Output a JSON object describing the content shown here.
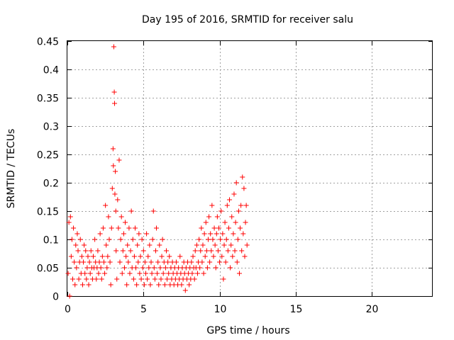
{
  "chart_data": {
    "type": "scatter",
    "title": "Day 195 of 2016, SRMTID for receiver salu",
    "xlabel": "GPS time / hours",
    "ylabel": "SRMTID / TECUs",
    "xlim": [
      0,
      24
    ],
    "ylim": [
      0,
      0.45
    ],
    "grid": true,
    "marker": "+",
    "marker_color": "#ff0000",
    "x_ticks": [
      {
        "value": 0,
        "label": "0"
      },
      {
        "value": 5,
        "label": "5"
      },
      {
        "value": 10,
        "label": "10"
      },
      {
        "value": 15,
        "label": "15"
      },
      {
        "value": 20,
        "label": "20"
      }
    ],
    "y_ticks": [
      {
        "value": 0,
        "label": "0"
      },
      {
        "value": 0.05,
        "label": "0.05"
      },
      {
        "value": 0.1,
        "label": "0.1"
      },
      {
        "value": 0.15,
        "label": "0.15"
      },
      {
        "value": 0.2,
        "label": "0.2"
      },
      {
        "value": 0.25,
        "label": "0.25"
      },
      {
        "value": 0.3,
        "label": "0.3"
      },
      {
        "value": 0.35,
        "label": "0.35"
      },
      {
        "value": 0.4,
        "label": "0.4"
      },
      {
        "value": 0.45,
        "label": "0.45"
      }
    ],
    "series": [
      {
        "name": "SRMTID",
        "points": [
          [
            0.05,
            0.04
          ],
          [
            0.1,
            0.13
          ],
          [
            0.15,
            0.0
          ],
          [
            0.2,
            0.14
          ],
          [
            0.25,
            0.07
          ],
          [
            0.3,
            0.1
          ],
          [
            0.35,
            0.03
          ],
          [
            0.4,
            0.12
          ],
          [
            0.45,
            0.06
          ],
          [
            0.5,
            0.02
          ],
          [
            0.55,
            0.09
          ],
          [
            0.6,
            0.05
          ],
          [
            0.65,
            0.11
          ],
          [
            0.7,
            0.08
          ],
          [
            0.75,
            0.03
          ],
          [
            0.8,
            0.06
          ],
          [
            0.85,
            0.1
          ],
          [
            0.9,
            0.04
          ],
          [
            0.95,
            0.07
          ],
          [
            1.0,
            0.02
          ],
          [
            1.05,
            0.06
          ],
          [
            1.1,
            0.09
          ],
          [
            1.15,
            0.04
          ],
          [
            1.2,
            0.08
          ],
          [
            1.25,
            0.03
          ],
          [
            1.3,
            0.05
          ],
          [
            1.35,
            0.07
          ],
          [
            1.4,
            0.02
          ],
          [
            1.45,
            0.06
          ],
          [
            1.5,
            0.04
          ],
          [
            1.55,
            0.08
          ],
          [
            1.6,
            0.05
          ],
          [
            1.65,
            0.03
          ],
          [
            1.7,
            0.07
          ],
          [
            1.75,
            0.05
          ],
          [
            1.8,
            0.1
          ],
          [
            1.85,
            0.06
          ],
          [
            1.9,
            0.03
          ],
          [
            1.95,
            0.05
          ],
          [
            2.0,
            0.08
          ],
          [
            2.05,
            0.04
          ],
          [
            2.1,
            0.06
          ],
          [
            2.15,
            0.11
          ],
          [
            2.2,
            0.05
          ],
          [
            2.25,
            0.03
          ],
          [
            2.3,
            0.07
          ],
          [
            2.35,
            0.12
          ],
          [
            2.4,
            0.06
          ],
          [
            2.45,
            0.04
          ],
          [
            2.5,
            0.16
          ],
          [
            2.55,
            0.09
          ],
          [
            2.6,
            0.05
          ],
          [
            2.65,
            0.07
          ],
          [
            2.7,
            0.14
          ],
          [
            2.75,
            0.1
          ],
          [
            2.8,
            0.06
          ],
          [
            2.85,
            0.02
          ],
          [
            2.9,
            0.12
          ],
          [
            2.95,
            0.19
          ],
          [
            3.0,
            0.26
          ],
          [
            3.02,
            0.23
          ],
          [
            3.05,
            0.44
          ],
          [
            3.08,
            0.36
          ],
          [
            3.1,
            0.34
          ],
          [
            3.12,
            0.18
          ],
          [
            3.15,
            0.22
          ],
          [
            3.18,
            0.15
          ],
          [
            3.2,
            0.08
          ],
          [
            3.25,
            0.03
          ],
          [
            3.3,
            0.17
          ],
          [
            3.35,
            0.12
          ],
          [
            3.4,
            0.24
          ],
          [
            3.45,
            0.06
          ],
          [
            3.5,
            0.1
          ],
          [
            3.55,
            0.14
          ],
          [
            3.6,
            0.04
          ],
          [
            3.65,
            0.08
          ],
          [
            3.7,
            0.11
          ],
          [
            3.75,
            0.05
          ],
          [
            3.8,
            0.13
          ],
          [
            3.85,
            0.07
          ],
          [
            3.9,
            0.02
          ],
          [
            3.95,
            0.09
          ],
          [
            4.0,
            0.06
          ],
          [
            4.05,
            0.12
          ],
          [
            4.1,
            0.04
          ],
          [
            4.15,
            0.08
          ],
          [
            4.2,
            0.15
          ],
          [
            4.25,
            0.05
          ],
          [
            4.3,
            0.1
          ],
          [
            4.35,
            0.03
          ],
          [
            4.4,
            0.07
          ],
          [
            4.45,
            0.12
          ],
          [
            4.5,
            0.05
          ],
          [
            4.55,
            0.02
          ],
          [
            4.6,
            0.09
          ],
          [
            4.65,
            0.06
          ],
          [
            4.7,
            0.11
          ],
          [
            4.75,
            0.04
          ],
          [
            4.8,
            0.07
          ],
          [
            4.85,
            0.03
          ],
          [
            4.9,
            0.1
          ],
          [
            4.95,
            0.05
          ],
          [
            5.0,
            0.08
          ],
          [
            5.05,
            0.02
          ],
          [
            5.1,
            0.06
          ],
          [
            5.15,
            0.04
          ],
          [
            5.2,
            0.11
          ],
          [
            5.25,
            0.03
          ],
          [
            5.3,
            0.07
          ],
          [
            5.35,
            0.05
          ],
          [
            5.4,
            0.09
          ],
          [
            5.45,
            0.02
          ],
          [
            5.5,
            0.06
          ],
          [
            5.55,
            0.04
          ],
          [
            5.6,
            0.1
          ],
          [
            5.65,
            0.15
          ],
          [
            5.7,
            0.05
          ],
          [
            5.75,
            0.03
          ],
          [
            5.8,
            0.08
          ],
          [
            5.85,
            0.12
          ],
          [
            5.9,
            0.04
          ],
          [
            5.95,
            0.06
          ],
          [
            6.0,
            0.02
          ],
          [
            6.05,
            0.09
          ],
          [
            6.1,
            0.05
          ],
          [
            6.15,
            0.03
          ],
          [
            6.2,
            0.07
          ],
          [
            6.25,
            0.1
          ],
          [
            6.3,
            0.04
          ],
          [
            6.35,
            0.06
          ],
          [
            6.4,
            0.02
          ],
          [
            6.45,
            0.05
          ],
          [
            6.5,
            0.08
          ],
          [
            6.55,
            0.03
          ],
          [
            6.6,
            0.06
          ],
          [
            6.65,
            0.04
          ],
          [
            6.7,
            0.07
          ],
          [
            6.75,
            0.02
          ],
          [
            6.8,
            0.05
          ],
          [
            6.85,
            0.03
          ],
          [
            6.9,
            0.06
          ],
          [
            6.95,
            0.04
          ],
          [
            7.0,
            0.02
          ],
          [
            7.05,
            0.05
          ],
          [
            7.1,
            0.03
          ],
          [
            7.15,
            0.06
          ],
          [
            7.2,
            0.04
          ],
          [
            7.25,
            0.02
          ],
          [
            7.3,
            0.05
          ],
          [
            7.35,
            0.03
          ],
          [
            7.4,
            0.07
          ],
          [
            7.45,
            0.04
          ],
          [
            7.5,
            0.02
          ],
          [
            7.55,
            0.05
          ],
          [
            7.6,
            0.03
          ],
          [
            7.65,
            0.06
          ],
          [
            7.7,
            0.04
          ],
          [
            7.75,
            0.01
          ],
          [
            7.8,
            0.05
          ],
          [
            7.85,
            0.03
          ],
          [
            7.9,
            0.06
          ],
          [
            7.95,
            0.04
          ],
          [
            8.0,
            0.02
          ],
          [
            8.05,
            0.05
          ],
          [
            8.1,
            0.03
          ],
          [
            8.15,
            0.06
          ],
          [
            8.2,
            0.04
          ],
          [
            8.25,
            0.07
          ],
          [
            8.3,
            0.05
          ],
          [
            8.35,
            0.03
          ],
          [
            8.4,
            0.08
          ],
          [
            8.45,
            0.05
          ],
          [
            8.5,
            0.09
          ],
          [
            8.55,
            0.04
          ],
          [
            8.6,
            0.06
          ],
          [
            8.65,
            0.1
          ],
          [
            8.7,
            0.05
          ],
          [
            8.75,
            0.08
          ],
          [
            8.8,
            0.12
          ],
          [
            8.85,
            0.06
          ],
          [
            8.9,
            0.09
          ],
          [
            8.95,
            0.04
          ],
          [
            9.0,
            0.11
          ],
          [
            9.05,
            0.07
          ],
          [
            9.1,
            0.13
          ],
          [
            9.15,
            0.08
          ],
          [
            9.2,
            0.05
          ],
          [
            9.25,
            0.1
          ],
          [
            9.3,
            0.14
          ],
          [
            9.35,
            0.06
          ],
          [
            9.4,
            0.11
          ],
          [
            9.45,
            0.08
          ],
          [
            9.5,
            0.16
          ],
          [
            9.55,
            0.1
          ],
          [
            9.6,
            0.07
          ],
          [
            9.65,
            0.12
          ],
          [
            9.7,
            0.09
          ],
          [
            9.75,
            0.05
          ],
          [
            9.8,
            0.11
          ],
          [
            9.85,
            0.14
          ],
          [
            9.9,
            0.08
          ],
          [
            9.95,
            0.12
          ],
          [
            10.0,
            0.06
          ],
          [
            10.05,
            0.1
          ],
          [
            10.1,
            0.15
          ],
          [
            10.15,
            0.07
          ],
          [
            10.2,
            0.11
          ],
          [
            10.25,
            0.03
          ],
          [
            10.3,
            0.09
          ],
          [
            10.35,
            0.13
          ],
          [
            10.4,
            0.06
          ],
          [
            10.45,
            0.1
          ],
          [
            10.5,
            0.16
          ],
          [
            10.55,
            0.08
          ],
          [
            10.6,
            0.12
          ],
          [
            10.65,
            0.17
          ],
          [
            10.7,
            0.05
          ],
          [
            10.75,
            0.09
          ],
          [
            10.8,
            0.14
          ],
          [
            10.85,
            0.07
          ],
          [
            10.9,
            0.11
          ],
          [
            10.95,
            0.18
          ],
          [
            11.0,
            0.08
          ],
          [
            11.05,
            0.13
          ],
          [
            11.1,
            0.2
          ],
          [
            11.15,
            0.06
          ],
          [
            11.2,
            0.1
          ],
          [
            11.25,
            0.15
          ],
          [
            11.3,
            0.04
          ],
          [
            11.35,
            0.12
          ],
          [
            11.4,
            0.16
          ],
          [
            11.45,
            0.08
          ],
          [
            11.5,
            0.21
          ],
          [
            11.55,
            0.11
          ],
          [
            11.6,
            0.19
          ],
          [
            11.65,
            0.07
          ],
          [
            11.7,
            0.13
          ],
          [
            11.75,
            0.16
          ],
          [
            11.8,
            0.09
          ]
        ]
      }
    ]
  }
}
